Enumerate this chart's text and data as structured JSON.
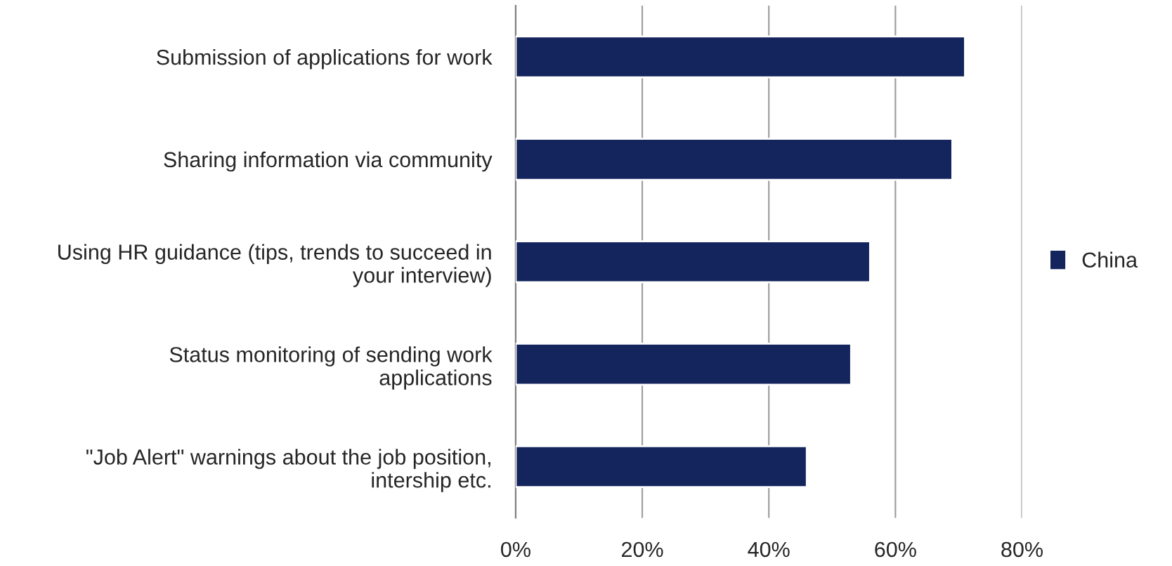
{
  "chart_data": {
    "type": "bar",
    "orientation": "horizontal",
    "categories": [
      "Submission of applications for work",
      "Sharing information via community",
      "Using HR guidance (tips, trends to succeed in\nyour interview)",
      "Status monitoring of sending work\napplications",
      "\"Job Alert\" warnings about the job position,\nintership etc."
    ],
    "series": [
      {
        "name": "China",
        "color": "#14245c",
        "values": [
          0.71,
          0.69,
          0.56,
          0.53,
          0.46
        ]
      }
    ],
    "xlim": [
      0,
      0.8
    ],
    "xticks": [
      {
        "value": 0,
        "label": "0%"
      },
      {
        "value": 0.2,
        "label": "20%"
      },
      {
        "value": 0.4,
        "label": "40%"
      },
      {
        "value": 0.6,
        "label": "60%"
      },
      {
        "value": 0.8,
        "label": "80%"
      }
    ],
    "grid": "x",
    "legend": "right"
  }
}
